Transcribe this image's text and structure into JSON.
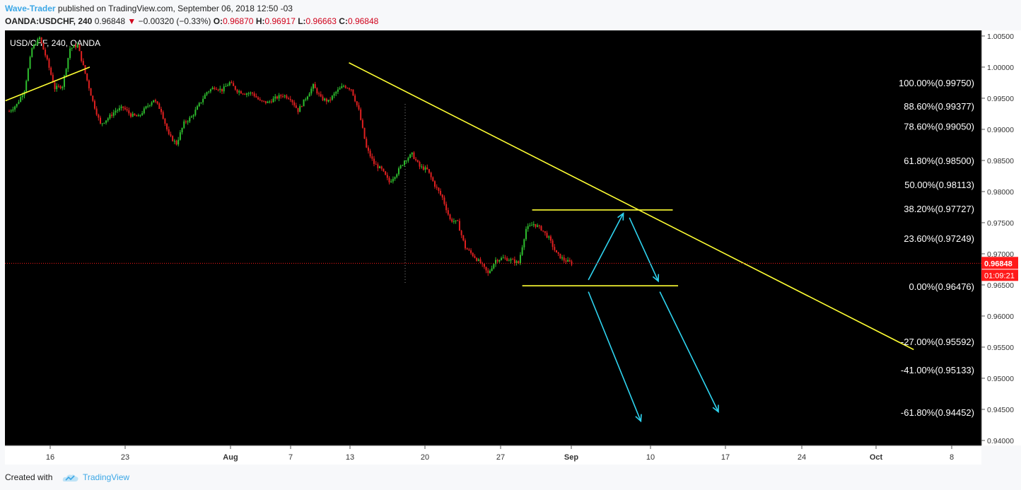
{
  "header": {
    "author": "Wave-Trader",
    "published_text": " published on TradingView.com, September 06, 2018 12:50 -03",
    "symbol": "OANDA:USDCHF, 240",
    "last": "0.96848",
    "change": "−0.00320 (−0.33%)",
    "o_label": "O:",
    "o": "0.96870",
    "h_label": "H:",
    "h": "0.96917",
    "l_label": "L:",
    "l": "0.96663",
    "c_label": "C:",
    "c": "0.96848"
  },
  "footer": {
    "created_with": "Created with",
    "brand": "TradingView"
  },
  "colors": {
    "up": "#2ebd2e",
    "down": "#e02020",
    "trend": "#ffff33",
    "arrow": "#2fd4f0",
    "price": "#ff1a1a"
  },
  "chart_data": {
    "type": "candlestick",
    "title": "USD/CHF, 240, OANDA",
    "x_ticks": [
      "16",
      "23",
      "Aug",
      "7",
      "13",
      "20",
      "27",
      "Sep",
      "10",
      "17",
      "24",
      "Oct",
      "8"
    ],
    "y_ticks": [
      "1.00500",
      "1.00000",
      "0.99500",
      "0.99000",
      "0.98500",
      "0.98000",
      "0.97500",
      "0.97000",
      "0.96500",
      "0.96000",
      "0.95500",
      "0.95000",
      "0.94500",
      "0.94000"
    ],
    "ylim": [
      0.9392,
      1.0059
    ],
    "current_price": "0.96848",
    "countdown": "01:09:21",
    "fib_levels": [
      {
        "label": "100.00%(0.99750)",
        "value": 0.9975
      },
      {
        "label": "88.60%(0.99377)",
        "value": 0.99377
      },
      {
        "label": "78.60%(0.99050)",
        "value": 0.9905
      },
      {
        "label": "61.80%(0.98500)",
        "value": 0.985
      },
      {
        "label": "50.00%(0.98113)",
        "value": 0.98113
      },
      {
        "label": "38.20%(0.97727)",
        "value": 0.97727
      },
      {
        "label": "23.60%(0.97249)",
        "value": 0.97249
      },
      {
        "label": "0.00%(0.96476)",
        "value": 0.96476
      },
      {
        "label": "-27.00%(0.95592)",
        "value": 0.95592
      },
      {
        "label": "-41.00%(0.95133)",
        "value": 0.95133
      },
      {
        "label": "-61.80%(0.94452)",
        "value": 0.94452
      }
    ],
    "trend_points": [
      [
        1.0,
        0.9929
      ],
      [
        2,
        0.994
      ],
      [
        3,
        0.9963
      ],
      [
        4,
        1.003
      ],
      [
        5,
        1.0047
      ],
      [
        6,
        1.001
      ],
      [
        7,
        0.9966
      ],
      [
        8,
        0.997
      ],
      [
        9,
        1.003
      ],
      [
        10,
        1.0035
      ],
      [
        11,
        0.999
      ],
      [
        12,
        0.9945
      ],
      [
        13,
        0.9908
      ],
      [
        14,
        0.9918
      ],
      [
        15,
        0.993
      ],
      [
        16,
        0.9935
      ],
      [
        17,
        0.9923
      ],
      [
        18,
        0.992
      ],
      [
        19,
        0.9935
      ],
      [
        20,
        0.9948
      ],
      [
        21,
        0.993
      ],
      [
        22,
        0.989
      ],
      [
        23,
        0.9877
      ],
      [
        24,
        0.991
      ],
      [
        25,
        0.992
      ],
      [
        26,
        0.994
      ],
      [
        27,
        0.996
      ],
      [
        28,
        0.9968
      ],
      [
        29,
        0.9963
      ],
      [
        30,
        0.9975
      ],
      [
        31,
        0.9962
      ],
      [
        32,
        0.9958
      ],
      [
        33,
        0.9958
      ],
      [
        34,
        0.9945
      ],
      [
        35,
        0.9943
      ],
      [
        36,
        0.995
      ],
      [
        37,
        0.9955
      ],
      [
        38,
        0.995
      ],
      [
        39,
        0.993
      ],
      [
        40,
        0.995
      ],
      [
        41,
        0.997
      ],
      [
        42,
        0.995
      ],
      [
        43,
        0.9945
      ],
      [
        44,
        0.996
      ],
      [
        45,
        0.997
      ],
      [
        46,
        0.9965
      ],
      [
        47,
        0.993
      ],
      [
        48,
        0.987
      ],
      [
        49,
        0.9845
      ],
      [
        50,
        0.9835
      ],
      [
        51,
        0.9815
      ],
      [
        52,
        0.983
      ],
      [
        53,
        0.985
      ],
      [
        54,
        0.986
      ],
      [
        55,
        0.984
      ],
      [
        56,
        0.9835
      ],
      [
        57,
        0.981
      ],
      [
        58,
        0.979
      ],
      [
        59,
        0.9755
      ],
      [
        60,
        0.975
      ],
      [
        61,
        0.971
      ],
      [
        62,
        0.9698
      ],
      [
        63,
        0.9685
      ],
      [
        64,
        0.9668
      ],
      [
        65,
        0.969
      ],
      [
        66,
        0.9693
      ],
      [
        67,
        0.969
      ],
      [
        68,
        0.9685
      ],
      [
        69,
        0.974
      ],
      [
        70,
        0.9748
      ],
      [
        71,
        0.974
      ],
      [
        72,
        0.9725
      ],
      [
        73,
        0.97
      ],
      [
        74,
        0.969
      ],
      [
        75,
        0.9685
      ]
    ],
    "trendlines": [
      {
        "x1": 0.5,
        "y1": 0.9946,
        "x2": 11.6,
        "y2": 1.0
      },
      {
        "x1": 45.7,
        "y1": 1.0007,
        "x2": 120,
        "y2": 0.9546
      },
      {
        "x1": 69.8,
        "y1": 0.97705,
        "x2": 88.3,
        "y2": 0.97705
      },
      {
        "x1": 68.5,
        "y1": 0.96486,
        "x2": 89.0,
        "y2": 0.96486
      }
    ],
    "arrows": [
      {
        "x1": 77.2,
        "y1": 0.9658,
        "x2": 81.8,
        "y2": 0.9765
      },
      {
        "x1": 82.6,
        "y1": 0.9758,
        "x2": 86.4,
        "y2": 0.9656
      },
      {
        "x1": 77.2,
        "y1": 0.9639,
        "x2": 84.1,
        "y2": 0.9431
      },
      {
        "x1": 86.6,
        "y1": 0.9639,
        "x2": 94.3,
        "y2": 0.9446
      }
    ]
  }
}
